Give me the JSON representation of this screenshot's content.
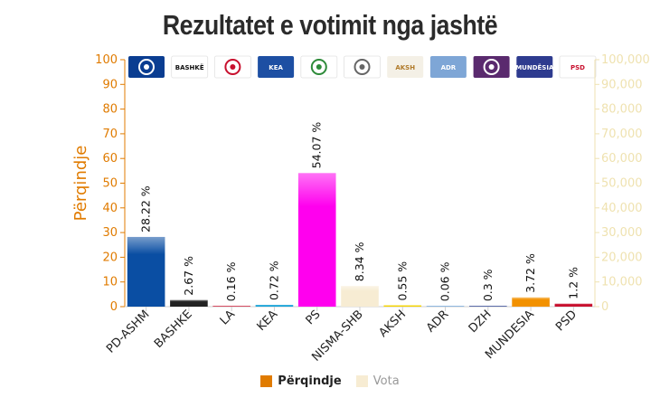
{
  "title": "Rezultatet e votimit nga jashtë",
  "legend": [
    {
      "label": "Përqindje",
      "color": "#e07b00"
    },
    {
      "label": "Vota",
      "color": "#f7ecd3"
    }
  ],
  "party_logos": [
    {
      "party": "PD-ASHM",
      "icon": "pd-logo",
      "text": "",
      "bg": "#0a3d91",
      "fg": "#ffffff"
    },
    {
      "party": "BASHKE",
      "icon": "bashke-logo",
      "text": "BASHKË",
      "bg": "#ffffff",
      "fg": "#111111"
    },
    {
      "party": "LA",
      "icon": "la-logo",
      "text": "",
      "bg": "#ffffff",
      "fg": "#c8102e"
    },
    {
      "party": "KEA",
      "icon": "kea-logo",
      "text": "KEA",
      "bg": "#1d4fa3",
      "fg": "#ffffff"
    },
    {
      "party": "PS",
      "icon": "ps-logo",
      "text": "",
      "bg": "#ffffff",
      "fg": "#2e8b3a"
    },
    {
      "party": "NISMA-SHB",
      "icon": "nisma-logo",
      "text": "",
      "bg": "#ffffff",
      "fg": "#666666"
    },
    {
      "party": "AKSH",
      "icon": "aksh-logo",
      "text": "AKSH",
      "bg": "#f4f0e6",
      "fg": "#b07a2a"
    },
    {
      "party": "ADR",
      "icon": "adr-logo",
      "text": "ADR",
      "bg": "#7ea6d6",
      "fg": "#ffffff"
    },
    {
      "party": "DZH",
      "icon": "dzh-logo",
      "text": "",
      "bg": "#5a2a6e",
      "fg": "#ffffff"
    },
    {
      "party": "MUNDESIA",
      "icon": "mundesia-logo",
      "text": "MUNDËSIA",
      "bg": "#2e3b8f",
      "fg": "#ffffff"
    },
    {
      "party": "PSD",
      "icon": "psd-logo",
      "text": "PSD",
      "bg": "#ffffff",
      "fg": "#c8102e"
    }
  ],
  "chart_data": {
    "type": "bar",
    "title": "Rezultatet e votimit nga jashtë",
    "categories": [
      "PD-ASHM",
      "BASHKE",
      "LA",
      "KEA",
      "PS",
      "NISMA-SHB",
      "AKSH",
      "ADR",
      "DZH",
      "MUNDESIA",
      "PSD"
    ],
    "series": [
      {
        "name": "Përqindje",
        "values": [
          28.22,
          2.67,
          0.16,
          0.72,
          54.07,
          8.34,
          0.55,
          0.06,
          0.3,
          3.72,
          1.2
        ]
      }
    ],
    "data_labels": [
      "28.22 %",
      "2.67 %",
      "0.16 %",
      "0.72 %",
      "54.07 %",
      "8.34 %",
      "0.55 %",
      "0.06 %",
      "0.3 %",
      "3.72 %",
      "1.2 %"
    ],
    "bar_colors": [
      "#0a4ea3",
      "#222222",
      "#c8102e",
      "#1aa3d8",
      "#ff00ee",
      "#f7ecd3",
      "#f5d300",
      "#6a9fd6",
      "#2a3f8f",
      "#f29100",
      "#c8102e"
    ],
    "ylabel": "Përqindje",
    "y2label": "",
    "ylim": [
      0,
      100
    ],
    "yticks": [
      "0",
      "10",
      "20",
      "30",
      "40",
      "50",
      "60",
      "70",
      "80",
      "90",
      "100"
    ],
    "y2lim": [
      0,
      100000
    ],
    "y2ticks": [
      "0",
      "10,000",
      "20,000",
      "30,000",
      "40,000",
      "50,000",
      "60,000",
      "70,000",
      "80,000",
      "90,000",
      "100,000"
    ],
    "grid": false,
    "legend_position": "bottom"
  }
}
